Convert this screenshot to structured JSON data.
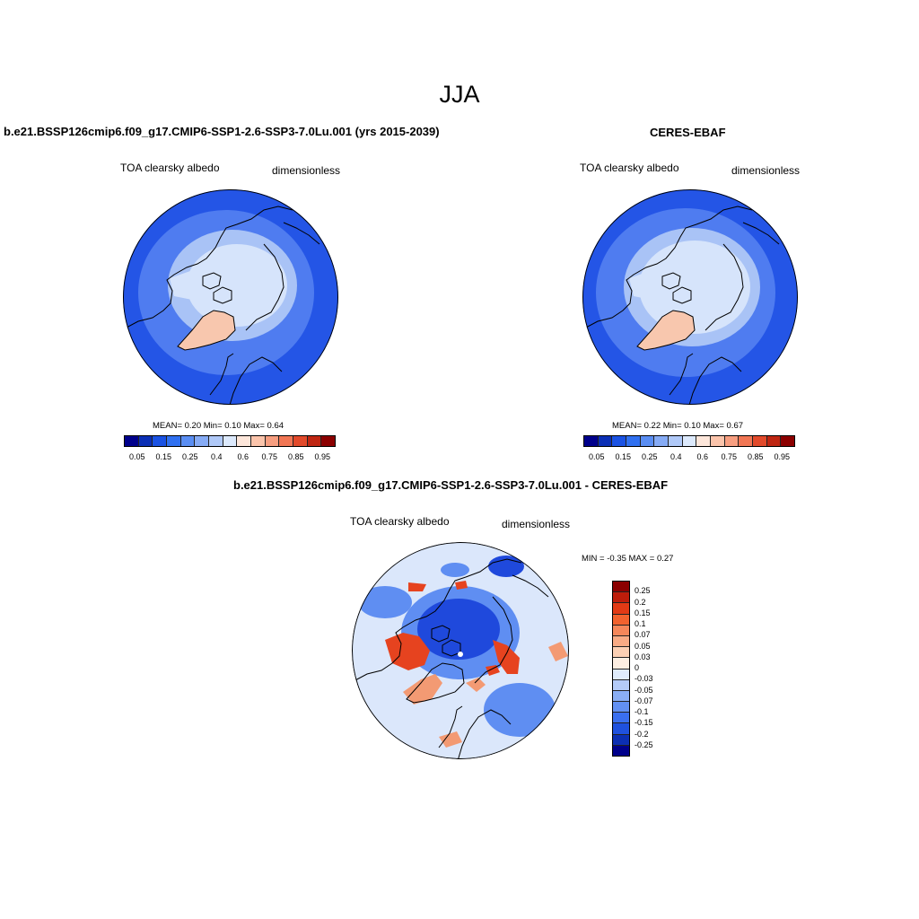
{
  "page": {
    "title": "JJA"
  },
  "panels": {
    "model": {
      "title": "b.e21.BSSP126cmip6.f09_g17.CMIP6-SSP1-2.6-SSP3-7.0Lu.001 (yrs 2015-2039)",
      "variable": "TOA clearsky albedo",
      "units": "dimensionless",
      "stats": "MEAN=   0.20  Min=   0.10  Max=   0.64"
    },
    "obs": {
      "title": "CERES-EBAF",
      "variable": "TOA clearsky albedo",
      "units": "dimensionless",
      "stats": "MEAN=   0.22  Min=   0.10  Max=   0.67"
    },
    "diff": {
      "title": "b.e21.BSSP126cmip6.f09_g17.CMIP6-SSP1-2.6-SSP3-7.0Lu.001 - CERES-EBAF",
      "variable": "TOA clearsky albedo",
      "units": "dimensionless",
      "stats": "MIN =  -0.35 MAX =   0.27"
    }
  },
  "colorbar_main": {
    "colors": [
      "#00008b",
      "#0b2fb5",
      "#1a52e3",
      "#3070f0",
      "#5a8ef3",
      "#86abf5",
      "#b0c9f8",
      "#dce9fc",
      "#fde6da",
      "#fbc4ab",
      "#f79e80",
      "#f17654",
      "#e24a2b",
      "#bf2612",
      "#8b0000"
    ],
    "tick_labels": [
      "0.05",
      "0.15",
      "0.25",
      "0.4",
      "0.6",
      "0.75",
      "0.85",
      "0.95"
    ]
  },
  "colorbar_diff": {
    "colors": [
      "#8b0000",
      "#be1d0b",
      "#e23a15",
      "#f2622e",
      "#f6875a",
      "#f9ab85",
      "#fcd0b4",
      "#fdeee2",
      "#e0ecfc",
      "#b4cbf8",
      "#8aaef5",
      "#6290f2",
      "#3a6fef",
      "#1f51de",
      "#0c2fb3",
      "#00008b"
    ],
    "labels": [
      "0.25",
      "0.2",
      "0.15",
      "0.1",
      "0.07",
      "0.05",
      "0.03",
      "0",
      "-0.03",
      "-0.05",
      "-0.07",
      "-0.1",
      "-0.15",
      "-0.2",
      "-0.25"
    ]
  },
  "map_palette": {
    "ocean": "#2455e6",
    "ocean_light": "#4f7cf0",
    "ice_pale": "#d6e4fb",
    "ice_mid": "#a9c3f6",
    "greenland_peak": "#f8c7ae",
    "diff_bg": "#dbe7fb",
    "diff_blue": "#5f8ef2",
    "diff_deep": "#1f49dc",
    "diff_red": "#e6431f",
    "diff_orange": "#f39a73"
  }
}
